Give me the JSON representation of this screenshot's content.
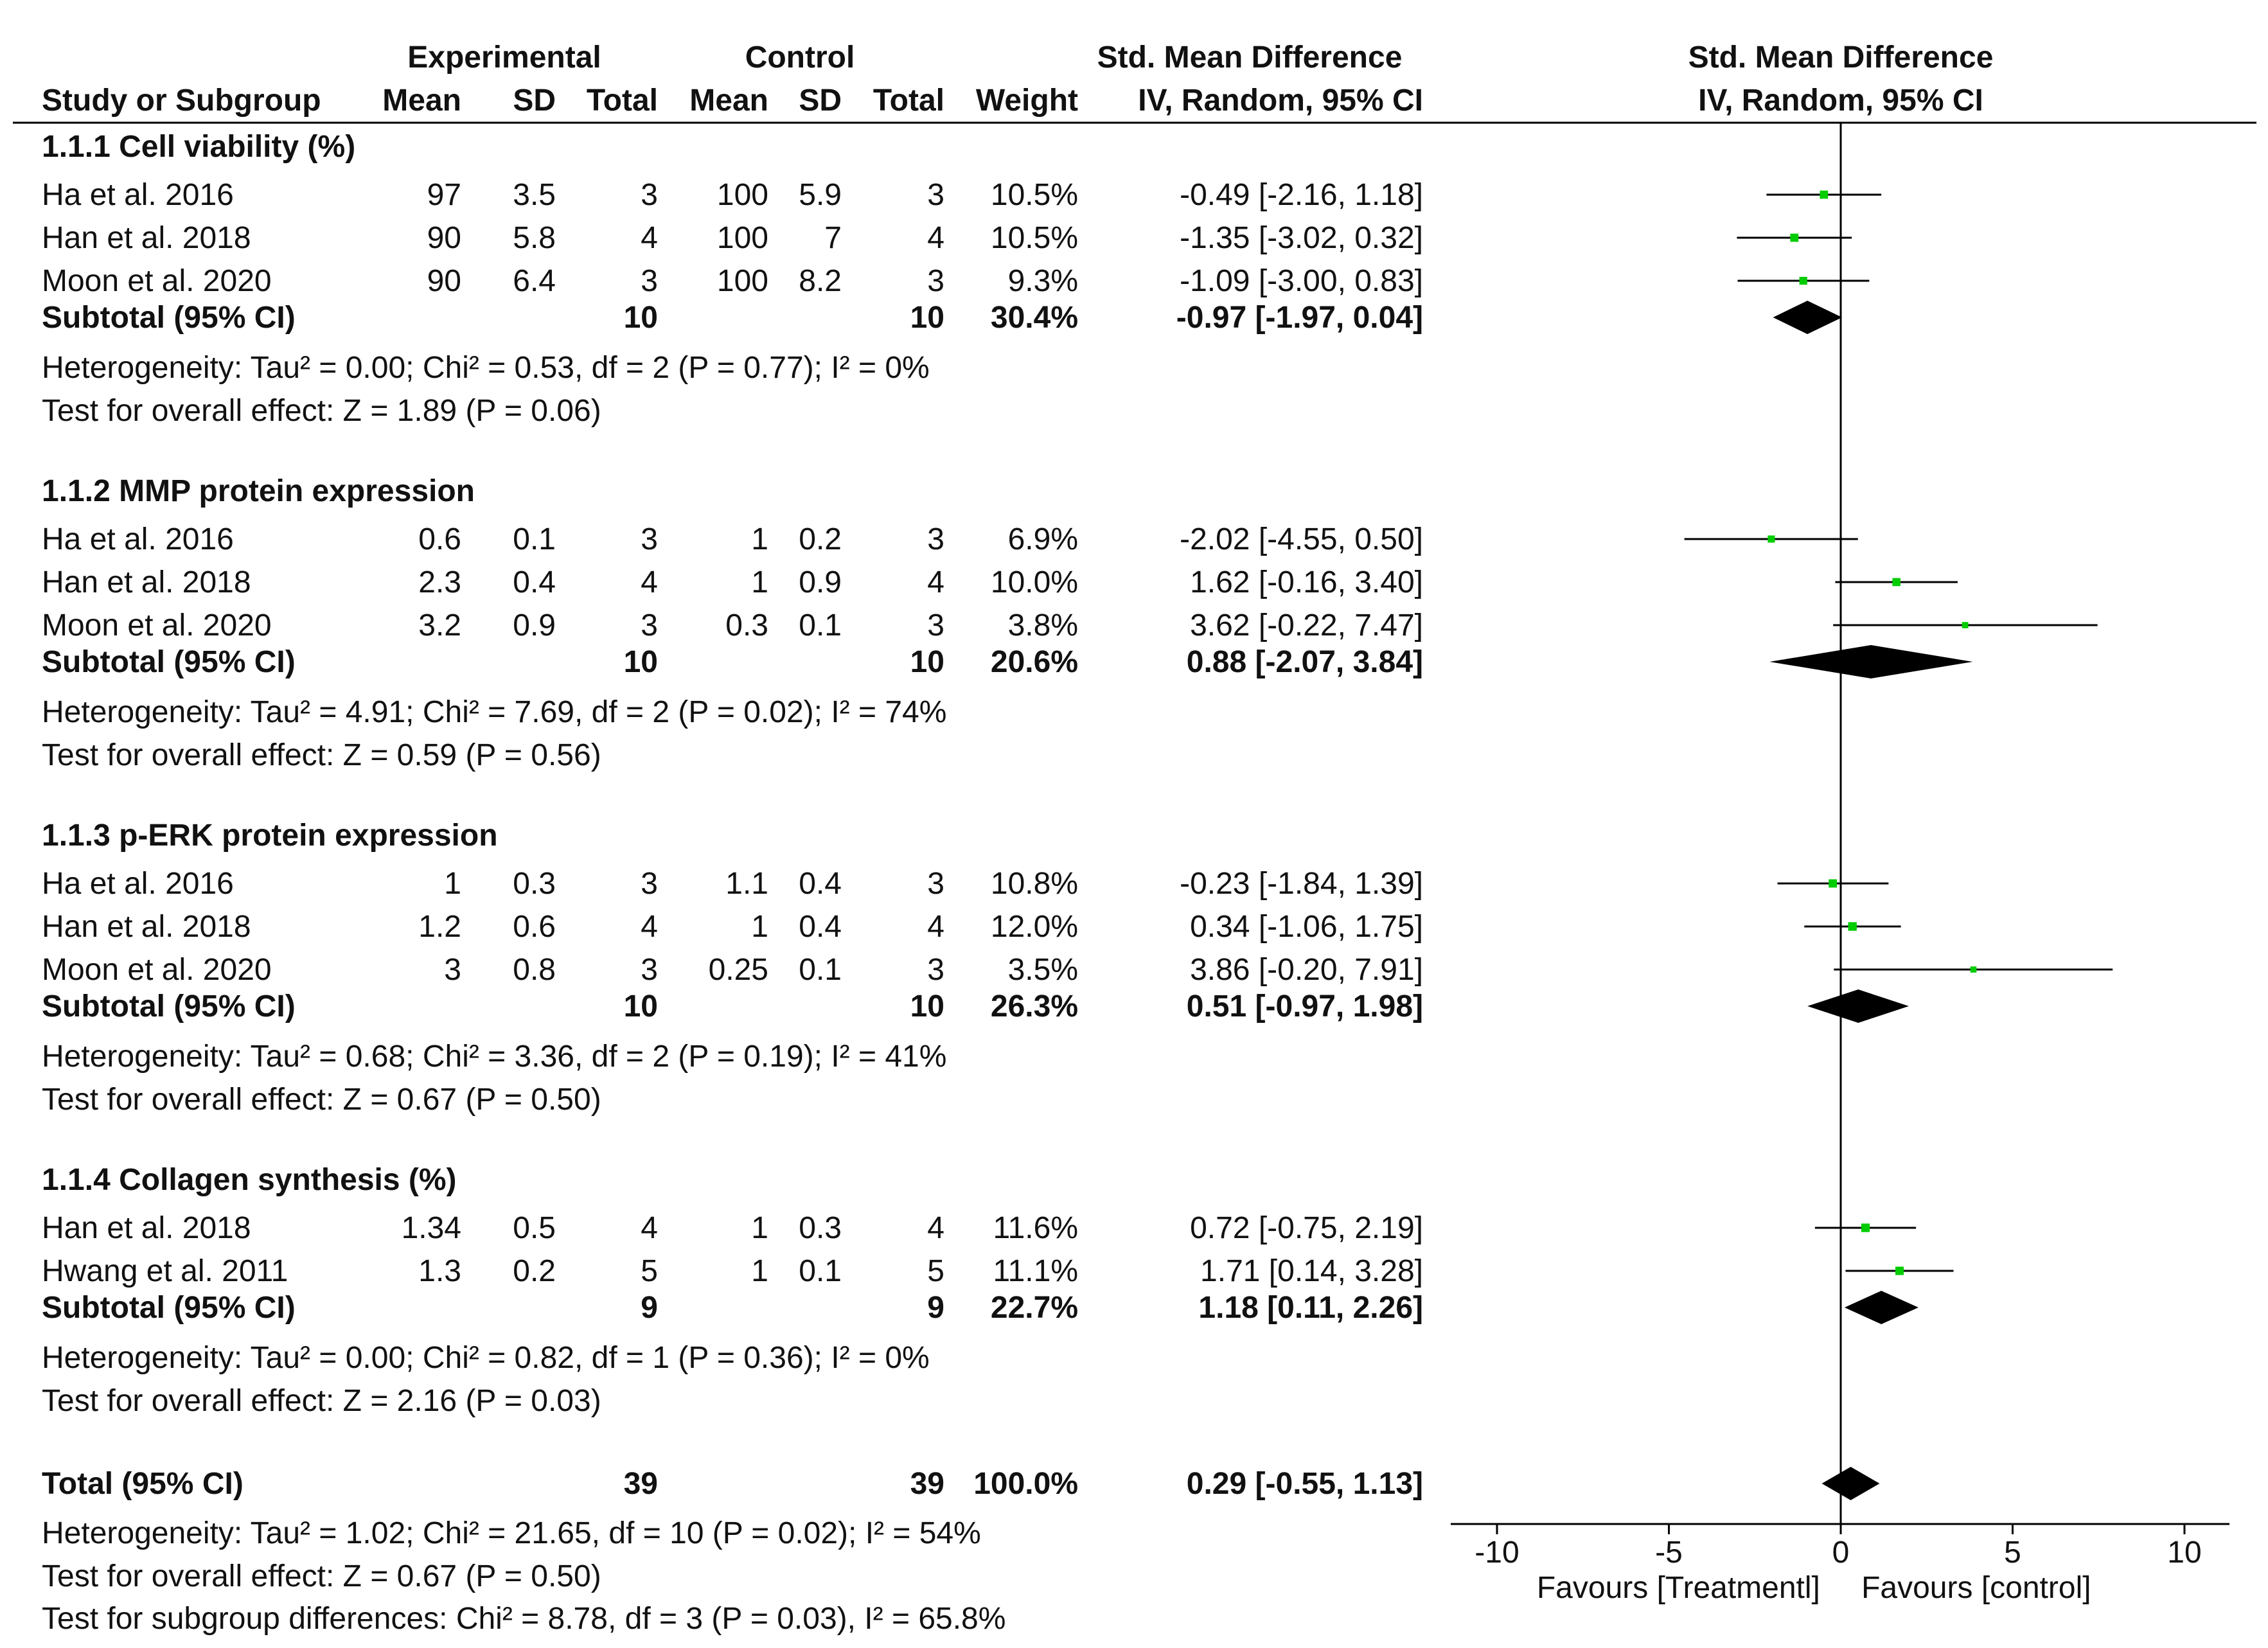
{
  "chart_data": {
    "type": "forest",
    "header": {
      "group_experimental": "Experimental",
      "group_control": "Control",
      "group_smd": "Std. Mean Difference",
      "col_study": "Study or Subgroup",
      "col_mean_e": "Mean",
      "col_sd_e": "SD",
      "col_total_e": "Total",
      "col_mean_c": "Mean",
      "col_sd_c": "SD",
      "col_total_c": "Total",
      "col_weight": "Weight",
      "col_smd": "IV, Random, 95% CI",
      "plot_title": "Std. Mean Difference",
      "plot_subtitle": "IV, Random, 95% CI"
    },
    "subgroups": [
      {
        "title": "1.1.1 Cell viability (%)",
        "studies": [
          {
            "name": "Ha et al. 2016",
            "mean_e": "97",
            "sd_e": "3.5",
            "n_e": "3",
            "mean_c": "100",
            "sd_c": "5.9",
            "n_c": "3",
            "weight": "10.5%",
            "ci_text": "-0.49 [-2.16, 1.18]",
            "est": -0.49,
            "lo": -2.16,
            "hi": 1.18
          },
          {
            "name": "Han et al. 2018",
            "mean_e": "90",
            "sd_e": "5.8",
            "n_e": "4",
            "mean_c": "100",
            "sd_c": "7",
            "n_c": "4",
            "weight": "10.5%",
            "ci_text": "-1.35 [-3.02, 0.32]",
            "est": -1.35,
            "lo": -3.02,
            "hi": 0.32
          },
          {
            "name": "Moon et al. 2020",
            "mean_e": "90",
            "sd_e": "6.4",
            "n_e": "3",
            "mean_c": "100",
            "sd_c": "8.2",
            "n_c": "3",
            "weight": "9.3%",
            "ci_text": "-1.09 [-3.00, 0.83]",
            "est": -1.09,
            "lo": -3.0,
            "hi": 0.83
          }
        ],
        "subtotal": {
          "label": "Subtotal (95% CI)",
          "n_e": "10",
          "n_c": "10",
          "weight": "30.4%",
          "ci_text": "-0.97 [-1.97, 0.04]",
          "est": -0.97,
          "lo": -1.97,
          "hi": 0.04
        },
        "heterogeneity": "Heterogeneity: Tau² = 0.00; Chi² = 0.53, df = 2 (P = 0.77); I² = 0%",
        "overall": "Test for overall effect: Z = 1.89 (P = 0.06)"
      },
      {
        "title": "1.1.2 MMP protein expression",
        "studies": [
          {
            "name": "Ha et al. 2016",
            "mean_e": "0.6",
            "sd_e": "0.1",
            "n_e": "3",
            "mean_c": "1",
            "sd_c": "0.2",
            "n_c": "3",
            "weight": "6.9%",
            "ci_text": "-2.02 [-4.55, 0.50]",
            "est": -2.02,
            "lo": -4.55,
            "hi": 0.5
          },
          {
            "name": "Han et al. 2018",
            "mean_e": "2.3",
            "sd_e": "0.4",
            "n_e": "4",
            "mean_c": "1",
            "sd_c": "0.9",
            "n_c": "4",
            "weight": "10.0%",
            "ci_text": "1.62 [-0.16, 3.40]",
            "est": 1.62,
            "lo": -0.16,
            "hi": 3.4
          },
          {
            "name": "Moon et al. 2020",
            "mean_e": "3.2",
            "sd_e": "0.9",
            "n_e": "3",
            "mean_c": "0.3",
            "sd_c": "0.1",
            "n_c": "3",
            "weight": "3.8%",
            "ci_text": "3.62 [-0.22, 7.47]",
            "est": 3.62,
            "lo": -0.22,
            "hi": 7.47
          }
        ],
        "subtotal": {
          "label": "Subtotal (95% CI)",
          "n_e": "10",
          "n_c": "10",
          "weight": "20.6%",
          "ci_text": "0.88 [-2.07, 3.84]",
          "est": 0.88,
          "lo": -2.07,
          "hi": 3.84
        },
        "heterogeneity": "Heterogeneity: Tau² = 4.91; Chi² = 7.69, df = 2 (P = 0.02); I² = 74%",
        "overall": "Test for overall effect: Z = 0.59 (P = 0.56)"
      },
      {
        "title": "1.1.3 p-ERK protein expression",
        "studies": [
          {
            "name": "Ha et al. 2016",
            "mean_e": "1",
            "sd_e": "0.3",
            "n_e": "3",
            "mean_c": "1.1",
            "sd_c": "0.4",
            "n_c": "3",
            "weight": "10.8%",
            "ci_text": "-0.23 [-1.84, 1.39]",
            "est": -0.23,
            "lo": -1.84,
            "hi": 1.39
          },
          {
            "name": "Han et al. 2018",
            "mean_e": "1.2",
            "sd_e": "0.6",
            "n_e": "4",
            "mean_c": "1",
            "sd_c": "0.4",
            "n_c": "4",
            "weight": "12.0%",
            "ci_text": "0.34 [-1.06, 1.75]",
            "est": 0.34,
            "lo": -1.06,
            "hi": 1.75
          },
          {
            "name": "Moon et al. 2020",
            "mean_e": "3",
            "sd_e": "0.8",
            "n_e": "3",
            "mean_c": "0.25",
            "sd_c": "0.1",
            "n_c": "3",
            "weight": "3.5%",
            "ci_text": "3.86 [-0.20, 7.91]",
            "est": 3.86,
            "lo": -0.2,
            "hi": 7.91
          }
        ],
        "subtotal": {
          "label": "Subtotal (95% CI)",
          "n_e": "10",
          "n_c": "10",
          "weight": "26.3%",
          "ci_text": "0.51 [-0.97, 1.98]",
          "est": 0.51,
          "lo": -0.97,
          "hi": 1.98
        },
        "heterogeneity": "Heterogeneity: Tau² = 0.68; Chi² = 3.36, df = 2 (P = 0.19); I² = 41%",
        "overall": "Test for overall effect: Z = 0.67 (P = 0.50)"
      },
      {
        "title": "1.1.4 Collagen synthesis (%)",
        "studies": [
          {
            "name": "Han et al. 2018",
            "mean_e": "1.34",
            "sd_e": "0.5",
            "n_e": "4",
            "mean_c": "1",
            "sd_c": "0.3",
            "n_c": "4",
            "weight": "11.6%",
            "ci_text": "0.72 [-0.75, 2.19]",
            "est": 0.72,
            "lo": -0.75,
            "hi": 2.19
          },
          {
            "name": "Hwang et al. 2011",
            "mean_e": "1.3",
            "sd_e": "0.2",
            "n_e": "5",
            "mean_c": "1",
            "sd_c": "0.1",
            "n_c": "5",
            "weight": "11.1%",
            "ci_text": "1.71 [0.14, 3.28]",
            "est": 1.71,
            "lo": 0.14,
            "hi": 3.28
          }
        ],
        "subtotal": {
          "label": "Subtotal (95% CI)",
          "n_e": "9",
          "n_c": "9",
          "weight": "22.7%",
          "ci_text": "1.18 [0.11, 2.26]",
          "est": 1.18,
          "lo": 0.11,
          "hi": 2.26
        },
        "heterogeneity": "Heterogeneity: Tau² = 0.00; Chi² = 0.82, df = 1 (P = 0.36); I² = 0%",
        "overall": "Test for overall effect: Z = 2.16 (P = 0.03)"
      }
    ],
    "total": {
      "label": "Total (95% CI)",
      "n_e": "39",
      "n_c": "39",
      "weight": "100.0%",
      "ci_text": "0.29 [-0.55, 1.13]",
      "est": 0.29,
      "lo": -0.55,
      "hi": 1.13
    },
    "total_heterogeneity": "Heterogeneity: Tau² = 1.02; Chi² = 21.65, df = 10 (P = 0.02); I² = 54%",
    "total_overall": "Test for overall effect: Z = 0.67 (P = 0.50)",
    "subgroup_differences": "Test for subgroup differences: Chi² = 8.78, df = 3 (P = 0.03), I² = 65.8%",
    "axis": {
      "xlim": [
        -10,
        10
      ],
      "ticks": [
        -10,
        -5,
        0,
        5,
        10
      ],
      "tick_labels": [
        "-10",
        "-5",
        "0",
        "5",
        "10"
      ],
      "favours_left": "Favours [Treatmentl]",
      "favours_right": "Favours [control]"
    },
    "colors": {
      "point": "#00cc00",
      "diamond": "#000000",
      "line": "#000000",
      "text": "#111111"
    }
  }
}
